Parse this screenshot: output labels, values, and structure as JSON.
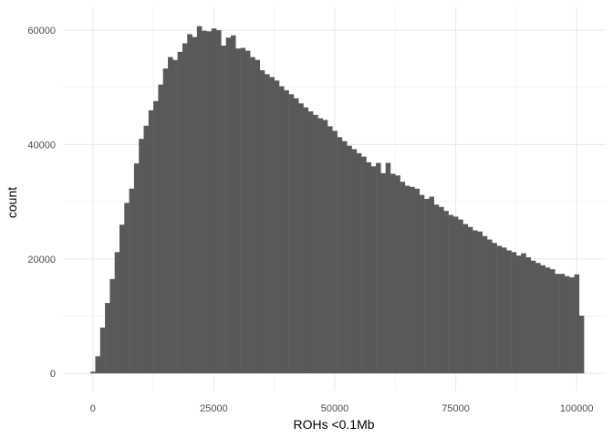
{
  "chart_data": {
    "type": "bar",
    "subtype": "histogram",
    "xlabel": "ROHs <0.1Mb",
    "ylabel": "count",
    "xlim": [
      -6000,
      106000
    ],
    "ylim": [
      -3000,
      64000
    ],
    "x_ticks": [
      0,
      25000,
      50000,
      75000,
      100000
    ],
    "x_tick_labels": [
      "0",
      "25000",
      "50000",
      "75000",
      "100000"
    ],
    "y_ticks": [
      0,
      20000,
      40000,
      60000
    ],
    "y_tick_labels": [
      "0",
      "20000",
      "40000",
      "60000"
    ],
    "bin_start": -500,
    "bin_width": 1000,
    "values": [
      300,
      3000,
      8000,
      12300,
      16500,
      21200,
      26000,
      29800,
      32300,
      36700,
      41000,
      43300,
      46000,
      47600,
      50500,
      53300,
      55300,
      54800,
      56200,
      57700,
      59300,
      58800,
      60700,
      59900,
      59800,
      60300,
      60000,
      57300,
      58700,
      59100,
      56800,
      56900,
      56400,
      55300,
      54800,
      53000,
      52300,
      51800,
      51200,
      50200,
      49500,
      48800,
      48100,
      47200,
      46500,
      45800,
      45200,
      44600,
      44300,
      43200,
      42400,
      41300,
      40600,
      39800,
      39200,
      38500,
      37900,
      36900,
      36200,
      36800,
      35000,
      36800,
      34900,
      34600,
      33500,
      32800,
      32600,
      32300,
      31200,
      30500,
      30900,
      29500,
      29100,
      28400,
      27700,
      27400,
      26900,
      26100,
      25600,
      25000,
      24800,
      24000,
      23400,
      22800,
      22300,
      22000,
      21500,
      21200,
      20600,
      21000,
      20300,
      19700,
      19300,
      18900,
      18500,
      18200,
      17400,
      17400,
      17000,
      16800,
      17300,
      10100
    ],
    "bar_color": "#595959",
    "grid": true,
    "grid_color": "#ebebeb",
    "background": "#ffffff",
    "legend": "none"
  }
}
